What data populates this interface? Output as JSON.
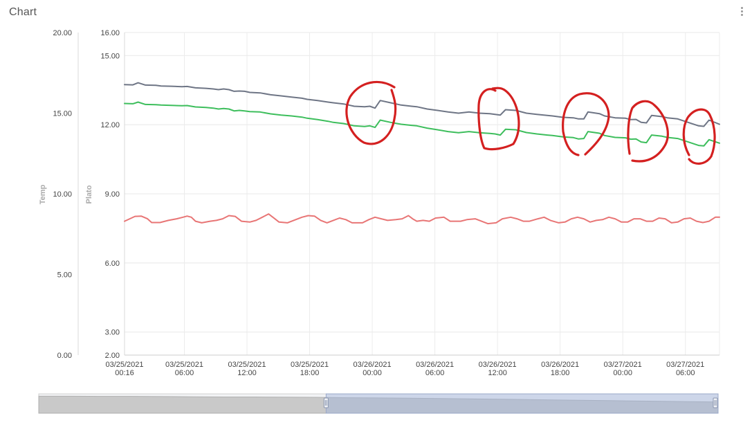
{
  "card": {
    "title": "Chart"
  },
  "chart_data": {
    "type": "line",
    "title": "",
    "axes": {
      "temp": {
        "label": "Temp",
        "range": [
          0,
          20
        ],
        "ticks": [
          "0.00",
          "5.00",
          "10.00",
          "15.00",
          "20.00"
        ]
      },
      "plato": {
        "label": "Plato",
        "range": [
          2,
          16
        ],
        "ticks": [
          "2.00",
          "3.00",
          "6.00",
          "9.00",
          "12.00",
          "15.00",
          "16.00"
        ]
      }
    },
    "x_hours_ticks": [
      0,
      5.733,
      11.733,
      17.733,
      23.733,
      29.733,
      35.733,
      41.733,
      47.733,
      53.733
    ],
    "xtick_labels": [
      [
        "03/25/2021",
        "00:16"
      ],
      [
        "03/25/2021",
        "06:00"
      ],
      [
        "03/25/2021",
        "12:00"
      ],
      [
        "03/25/2021",
        "18:00"
      ],
      [
        "03/26/2021",
        "00:00"
      ],
      [
        "03/26/2021",
        "06:00"
      ],
      [
        "03/26/2021",
        "12:00"
      ],
      [
        "03/26/2021",
        "18:00"
      ],
      [
        "03/27/2021",
        "00:00"
      ],
      [
        "03/27/2021",
        "06:00"
      ]
    ],
    "x_range": [
      0,
      57
    ],
    "grid": true,
    "series": [
      {
        "color": "#6e7585",
        "axis": "plato",
        "points": [
          [
            0,
            13.74
          ],
          [
            0.8,
            13.73
          ],
          [
            1.3,
            13.82
          ],
          [
            2.0,
            13.72
          ],
          [
            3.0,
            13.71
          ],
          [
            3.5,
            13.68
          ],
          [
            4.5,
            13.67
          ],
          [
            5.5,
            13.65
          ],
          [
            6.0,
            13.66
          ],
          [
            6.8,
            13.6
          ],
          [
            7.8,
            13.58
          ],
          [
            8.5,
            13.55
          ],
          [
            9.0,
            13.52
          ],
          [
            9.5,
            13.55
          ],
          [
            10.0,
            13.52
          ],
          [
            10.5,
            13.45
          ],
          [
            11.0,
            13.46
          ],
          [
            11.5,
            13.45
          ],
          [
            12.0,
            13.4
          ],
          [
            13.0,
            13.38
          ],
          [
            14.0,
            13.3
          ],
          [
            15.0,
            13.25
          ],
          [
            16.0,
            13.2
          ],
          [
            17.0,
            13.15
          ],
          [
            17.5,
            13.1
          ],
          [
            18.5,
            13.05
          ],
          [
            19.5,
            12.98
          ],
          [
            20.0,
            12.95
          ],
          [
            21.0,
            12.9
          ],
          [
            21.5,
            12.85
          ],
          [
            22.0,
            12.8
          ],
          [
            23.0,
            12.78
          ],
          [
            23.5,
            12.8
          ],
          [
            24.0,
            12.72
          ],
          [
            24.5,
            13.05
          ],
          [
            25.5,
            12.95
          ],
          [
            26.5,
            12.85
          ],
          [
            27.5,
            12.8
          ],
          [
            28.0,
            12.78
          ],
          [
            29.0,
            12.68
          ],
          [
            30.0,
            12.62
          ],
          [
            31.0,
            12.55
          ],
          [
            32.0,
            12.5
          ],
          [
            33.0,
            12.55
          ],
          [
            34.0,
            12.5
          ],
          [
            35.0,
            12.48
          ],
          [
            35.5,
            12.45
          ],
          [
            36.0,
            12.42
          ],
          [
            36.5,
            12.65
          ],
          [
            37.5,
            12.62
          ],
          [
            38.5,
            12.5
          ],
          [
            39.5,
            12.45
          ],
          [
            40.5,
            12.4
          ],
          [
            41.0,
            12.38
          ],
          [
            42.0,
            12.32
          ],
          [
            43.0,
            12.3
          ],
          [
            43.5,
            12.25
          ],
          [
            44.0,
            12.25
          ],
          [
            44.4,
            12.55
          ],
          [
            45.5,
            12.48
          ],
          [
            46.0,
            12.38
          ],
          [
            47.0,
            12.3
          ],
          [
            48.0,
            12.28
          ],
          [
            48.5,
            12.22
          ],
          [
            49.0,
            12.23
          ],
          [
            49.5,
            12.1
          ],
          [
            50.0,
            12.08
          ],
          [
            50.5,
            12.4
          ],
          [
            51.5,
            12.35
          ],
          [
            52.0,
            12.3
          ],
          [
            53.0,
            12.25
          ],
          [
            54.0,
            12.1
          ],
          [
            55.0,
            11.95
          ],
          [
            55.5,
            11.93
          ],
          [
            56.0,
            12.2
          ],
          [
            57.0,
            12.02
          ]
        ]
      },
      {
        "color": "#3dbe5c",
        "axis": "plato",
        "points": [
          [
            0,
            12.92
          ],
          [
            0.8,
            12.91
          ],
          [
            1.3,
            12.98
          ],
          [
            2.0,
            12.88
          ],
          [
            3.0,
            12.87
          ],
          [
            3.5,
            12.85
          ],
          [
            4.5,
            12.84
          ],
          [
            5.5,
            12.82
          ],
          [
            6.0,
            12.83
          ],
          [
            6.8,
            12.77
          ],
          [
            7.8,
            12.75
          ],
          [
            8.5,
            12.72
          ],
          [
            9.0,
            12.68
          ],
          [
            9.5,
            12.7
          ],
          [
            10.0,
            12.68
          ],
          [
            10.5,
            12.6
          ],
          [
            11.0,
            12.62
          ],
          [
            11.5,
            12.6
          ],
          [
            12.0,
            12.57
          ],
          [
            13.0,
            12.55
          ],
          [
            14.0,
            12.47
          ],
          [
            15.0,
            12.42
          ],
          [
            16.0,
            12.38
          ],
          [
            17.0,
            12.33
          ],
          [
            17.5,
            12.28
          ],
          [
            18.5,
            12.22
          ],
          [
            19.5,
            12.15
          ],
          [
            20.0,
            12.1
          ],
          [
            21.0,
            12.05
          ],
          [
            21.5,
            12.0
          ],
          [
            22.0,
            11.95
          ],
          [
            23.0,
            11.92
          ],
          [
            23.5,
            11.95
          ],
          [
            24.0,
            11.88
          ],
          [
            24.5,
            12.2
          ],
          [
            25.5,
            12.1
          ],
          [
            26.5,
            12.02
          ],
          [
            27.5,
            11.97
          ],
          [
            28.0,
            11.95
          ],
          [
            29.0,
            11.85
          ],
          [
            30.0,
            11.78
          ],
          [
            31.0,
            11.7
          ],
          [
            32.0,
            11.65
          ],
          [
            33.0,
            11.7
          ],
          [
            34.0,
            11.65
          ],
          [
            35.0,
            11.62
          ],
          [
            35.5,
            11.6
          ],
          [
            36.0,
            11.55
          ],
          [
            36.5,
            11.8
          ],
          [
            37.5,
            11.78
          ],
          [
            38.5,
            11.66
          ],
          [
            39.5,
            11.6
          ],
          [
            40.5,
            11.55
          ],
          [
            41.0,
            11.53
          ],
          [
            42.0,
            11.47
          ],
          [
            43.0,
            11.44
          ],
          [
            43.5,
            11.38
          ],
          [
            44.0,
            11.4
          ],
          [
            44.4,
            11.7
          ],
          [
            45.5,
            11.63
          ],
          [
            46.0,
            11.53
          ],
          [
            47.0,
            11.45
          ],
          [
            48.0,
            11.43
          ],
          [
            48.5,
            11.37
          ],
          [
            49.0,
            11.38
          ],
          [
            49.5,
            11.25
          ],
          [
            50.0,
            11.22
          ],
          [
            50.5,
            11.55
          ],
          [
            51.5,
            11.5
          ],
          [
            52.0,
            11.45
          ],
          [
            53.0,
            11.4
          ],
          [
            54.0,
            11.25
          ],
          [
            55.0,
            11.1
          ],
          [
            55.5,
            11.08
          ],
          [
            56.0,
            11.35
          ],
          [
            57.0,
            11.2
          ]
        ]
      },
      {
        "color": "#e87575",
        "axis": "temp",
        "points": [
          [
            0,
            8.3
          ],
          [
            1,
            8.6
          ],
          [
            1.6,
            8.62
          ],
          [
            2.2,
            8.45
          ],
          [
            2.6,
            8.22
          ],
          [
            3.4,
            8.22
          ],
          [
            4.2,
            8.35
          ],
          [
            5.0,
            8.45
          ],
          [
            5.6,
            8.55
          ],
          [
            6.0,
            8.62
          ],
          [
            6.4,
            8.55
          ],
          [
            6.8,
            8.3
          ],
          [
            7.4,
            8.2
          ],
          [
            8.2,
            8.3
          ],
          [
            8.8,
            8.35
          ],
          [
            9.4,
            8.45
          ],
          [
            10.0,
            8.65
          ],
          [
            10.6,
            8.6
          ],
          [
            11.2,
            8.3
          ],
          [
            12.0,
            8.25
          ],
          [
            12.6,
            8.35
          ],
          [
            13.2,
            8.55
          ],
          [
            13.8,
            8.75
          ],
          [
            14.4,
            8.45
          ],
          [
            14.8,
            8.25
          ],
          [
            15.6,
            8.2
          ],
          [
            16.4,
            8.4
          ],
          [
            17.0,
            8.55
          ],
          [
            17.6,
            8.65
          ],
          [
            18.2,
            8.62
          ],
          [
            18.8,
            8.35
          ],
          [
            19.4,
            8.2
          ],
          [
            20.0,
            8.35
          ],
          [
            20.6,
            8.5
          ],
          [
            21.2,
            8.4
          ],
          [
            21.8,
            8.2
          ],
          [
            22.8,
            8.2
          ],
          [
            23.4,
            8.4
          ],
          [
            24.0,
            8.55
          ],
          [
            24.6,
            8.45
          ],
          [
            25.2,
            8.35
          ],
          [
            26.0,
            8.4
          ],
          [
            26.6,
            8.45
          ],
          [
            27.2,
            8.65
          ],
          [
            27.6,
            8.45
          ],
          [
            28.0,
            8.3
          ],
          [
            28.6,
            8.35
          ],
          [
            29.2,
            8.3
          ],
          [
            29.8,
            8.5
          ],
          [
            30.6,
            8.55
          ],
          [
            31.2,
            8.3
          ],
          [
            32.2,
            8.3
          ],
          [
            32.8,
            8.4
          ],
          [
            33.6,
            8.45
          ],
          [
            34.2,
            8.3
          ],
          [
            34.8,
            8.15
          ],
          [
            35.6,
            8.2
          ],
          [
            36.2,
            8.45
          ],
          [
            37.0,
            8.55
          ],
          [
            37.6,
            8.45
          ],
          [
            38.2,
            8.3
          ],
          [
            38.8,
            8.3
          ],
          [
            39.6,
            8.45
          ],
          [
            40.2,
            8.55
          ],
          [
            40.8,
            8.35
          ],
          [
            41.6,
            8.2
          ],
          [
            42.2,
            8.25
          ],
          [
            42.8,
            8.45
          ],
          [
            43.4,
            8.55
          ],
          [
            44.0,
            8.45
          ],
          [
            44.6,
            8.25
          ],
          [
            45.2,
            8.35
          ],
          [
            45.8,
            8.4
          ],
          [
            46.4,
            8.55
          ],
          [
            47.0,
            8.45
          ],
          [
            47.6,
            8.25
          ],
          [
            48.2,
            8.25
          ],
          [
            48.8,
            8.45
          ],
          [
            49.4,
            8.45
          ],
          [
            50.0,
            8.3
          ],
          [
            50.6,
            8.3
          ],
          [
            51.2,
            8.5
          ],
          [
            51.8,
            8.45
          ],
          [
            52.4,
            8.2
          ],
          [
            53.0,
            8.25
          ],
          [
            53.6,
            8.45
          ],
          [
            54.2,
            8.5
          ],
          [
            54.8,
            8.3
          ],
          [
            55.4,
            8.22
          ],
          [
            56.0,
            8.3
          ],
          [
            56.6,
            8.55
          ],
          [
            57.0,
            8.55
          ]
        ]
      }
    ],
    "annotations": {
      "type": "hand-drawn circles",
      "color": "#d42020",
      "count": 5
    }
  },
  "navigator": {
    "selected_range_fraction": [
      0.423,
      1.0
    ],
    "area_profile_fraction": [
      0.88,
      0.88,
      0.87,
      0.87,
      0.86,
      0.85,
      0.84,
      0.84,
      0.83,
      0.82,
      0.8,
      0.79,
      0.78,
      0.76,
      0.74,
      0.72,
      0.7,
      0.68,
      0.66,
      0.64,
      0.62,
      0.6,
      0.58
    ]
  }
}
